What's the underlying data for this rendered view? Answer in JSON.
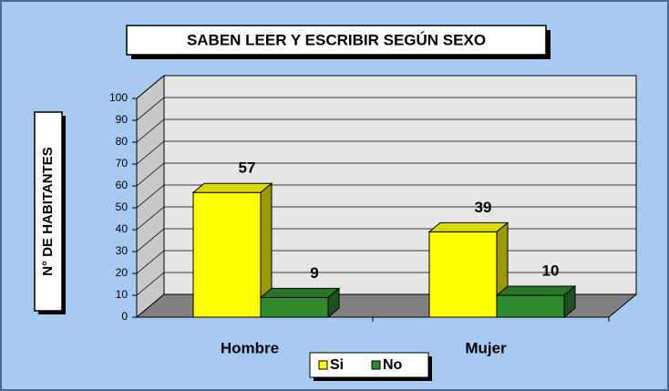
{
  "chart_data": {
    "type": "bar3d",
    "title": "SABEN LEER Y ESCRIBIR SEGÚN SEXO",
    "y_label": "N° DE HABITANTES",
    "categories": [
      "Hombre",
      "Mujer"
    ],
    "series": [
      {
        "name": "Si",
        "color": "#ffff00",
        "values": [
          57,
          39
        ]
      },
      {
        "name": "No",
        "color": "#2e8b2e",
        "values": [
          9,
          10
        ]
      }
    ],
    "ylim": [
      0,
      100
    ],
    "yticks": [
      0,
      10,
      20,
      30,
      40,
      50,
      60,
      70,
      80,
      90,
      100
    ],
    "grid": true,
    "legend": "bottom"
  }
}
